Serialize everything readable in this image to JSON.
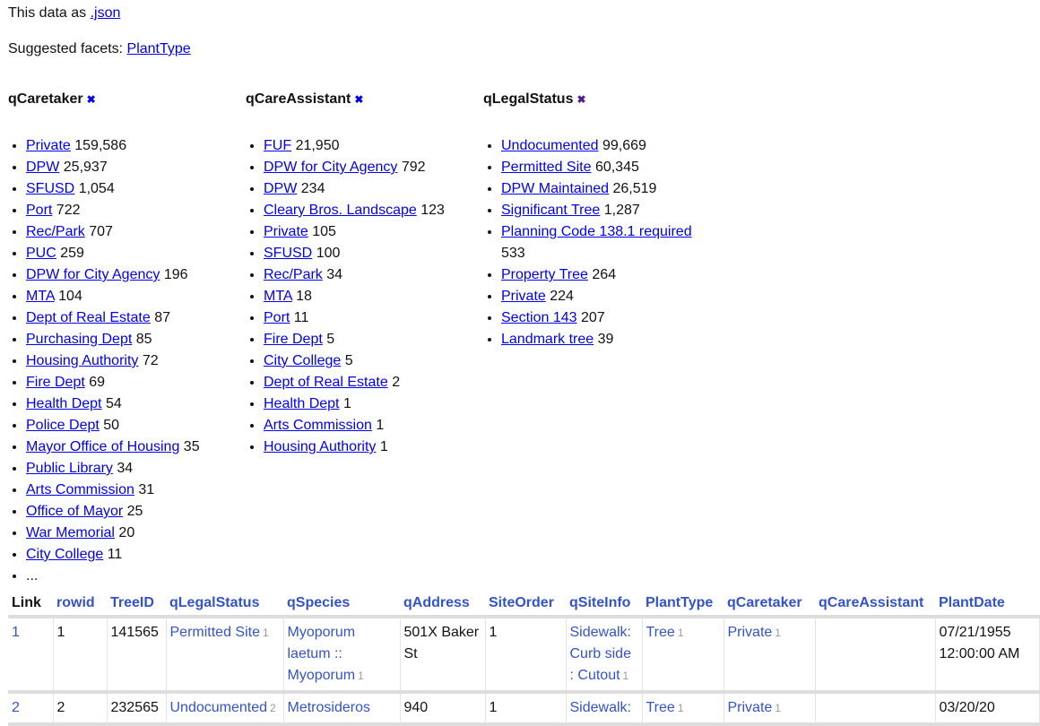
{
  "header": {
    "json_prefix": "This data as ",
    "json_link": ".json",
    "suggested_prefix": "Suggested facets: ",
    "suggested_link": "PlantType"
  },
  "facets": [
    {
      "title": "qCaretaker",
      "x_color": "#00e",
      "items": [
        [
          "Private",
          "159,586"
        ],
        [
          "DPW",
          "25,937"
        ],
        [
          "SFUSD",
          "1,054"
        ],
        [
          "Port",
          "722"
        ],
        [
          "Rec/Park",
          "707"
        ],
        [
          "PUC",
          "259"
        ],
        [
          "DPW for City Agency",
          "196"
        ],
        [
          "MTA",
          "104"
        ],
        [
          "Dept of Real Estate",
          "87"
        ],
        [
          "Purchasing Dept",
          "85"
        ],
        [
          "Housing Authority",
          "72"
        ],
        [
          "Fire Dept",
          "69"
        ],
        [
          "Health Dept",
          "54"
        ],
        [
          "Police Dept",
          "50"
        ],
        [
          "Mayor Office of Housing",
          "35"
        ],
        [
          "Public Library",
          "34"
        ],
        [
          "Arts Commission",
          "31"
        ],
        [
          "Office of Mayor",
          "25"
        ],
        [
          "War Memorial",
          "20"
        ],
        [
          "City College",
          "11"
        ]
      ],
      "more": "..."
    },
    {
      "title": "qCareAssistant",
      "x_color": "#00e",
      "items": [
        [
          "FUF",
          "21,950"
        ],
        [
          "DPW for City Agency",
          "792"
        ],
        [
          "DPW",
          "234"
        ],
        [
          "Cleary Bros. Landscape",
          "123"
        ],
        [
          "Private",
          "105"
        ],
        [
          "SFUSD",
          "100"
        ],
        [
          "Rec/Park",
          "34"
        ],
        [
          "MTA",
          "18"
        ],
        [
          "Port",
          "11"
        ],
        [
          "Fire Dept",
          "5"
        ],
        [
          "City College",
          "5"
        ],
        [
          "Dept of Real Estate",
          "2"
        ],
        [
          "Health Dept",
          "1"
        ],
        [
          "Arts Commission",
          "1"
        ],
        [
          "Housing Authority",
          "1"
        ]
      ]
    },
    {
      "title": "qLegalStatus",
      "x_color": "#551a8b",
      "items": [
        [
          "Undocumented",
          "99,669"
        ],
        [
          "Permitted Site",
          "60,345"
        ],
        [
          "DPW Maintained",
          "26,519"
        ],
        [
          "Significant Tree",
          "1,287"
        ],
        [
          "Planning Code 138.1 required",
          "533"
        ],
        [
          "Property Tree",
          "264"
        ],
        [
          "Private",
          "224"
        ],
        [
          "Section 143",
          "207"
        ],
        [
          "Landmark tree",
          "39"
        ]
      ]
    }
  ],
  "table": {
    "columns": [
      "Link",
      "rowid",
      "TreeID",
      "qLegalStatus",
      "qSpecies",
      "qAddress",
      "SiteOrder",
      "qSiteInfo",
      "PlantType",
      "qCaretaker",
      "qCareAssistant",
      "PlantDate"
    ],
    "rows": [
      [
        {
          "t": "1",
          "link": true
        },
        {
          "t": "1"
        },
        {
          "t": "141565"
        },
        {
          "t": "Permitted Site",
          "link": true,
          "c": "1"
        },
        {
          "t": "Myoporum laetum :: Myoporum",
          "link": true,
          "c": "1"
        },
        {
          "t": "501X Baker St"
        },
        {
          "t": "1"
        },
        {
          "t": "Sidewalk: Curb side : Cutout",
          "link": true,
          "c": "1"
        },
        {
          "t": "Tree",
          "link": true,
          "c": "1"
        },
        {
          "t": "Private",
          "link": true,
          "c": "1"
        },
        {
          "t": ""
        },
        {
          "t": "07/21/1955 12:00:00 AM"
        }
      ],
      [
        {
          "t": "2",
          "link": true
        },
        {
          "t": "2"
        },
        {
          "t": "232565"
        },
        {
          "t": "Undocumented",
          "link": true,
          "c": "2"
        },
        {
          "t": "Metrosideros",
          "link": true
        },
        {
          "t": "940"
        },
        {
          "t": "1"
        },
        {
          "t": "Sidewalk:",
          "link": true
        },
        {
          "t": "Tree",
          "link": true,
          "c": "1"
        },
        {
          "t": "Private",
          "link": true,
          "c": "1"
        },
        {
          "t": ""
        },
        {
          "t": "03/20/20"
        }
      ]
    ]
  }
}
